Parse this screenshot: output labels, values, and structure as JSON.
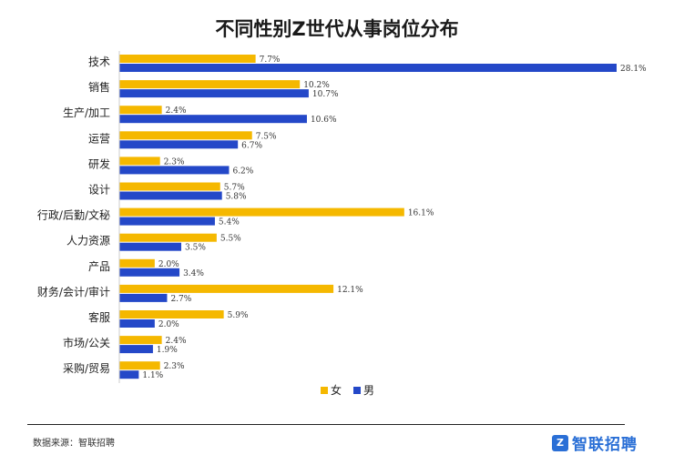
{
  "chart_data": {
    "type": "bar",
    "orientation": "horizontal",
    "title": "不同性别Z世代从事岗位分布",
    "categories": [
      "技术",
      "销售",
      "生产/加工",
      "运营",
      "研发",
      "设计",
      "行政/后勤/文秘",
      "人力资源",
      "产品",
      "财务/会计/审计",
      "客服",
      "市场/公关",
      "采购/贸易"
    ],
    "series": [
      {
        "name": "女",
        "color": "#f5b800",
        "values": [
          7.7,
          10.2,
          2.4,
          7.5,
          2.3,
          5.7,
          16.1,
          5.5,
          2.0,
          12.1,
          5.9,
          2.4,
          2.3
        ]
      },
      {
        "name": "男",
        "color": "#2448c8",
        "values": [
          28.1,
          10.7,
          10.6,
          6.7,
          6.2,
          5.8,
          5.4,
          3.5,
          3.4,
          2.7,
          2.0,
          1.9,
          1.1
        ]
      }
    ],
    "value_suffix": "%",
    "xlim": [
      0,
      28.1
    ],
    "legend_position": "bottom-center",
    "grid": false
  },
  "footer": {
    "source": "数据来源：智联招聘",
    "brand": "智联招聘"
  }
}
